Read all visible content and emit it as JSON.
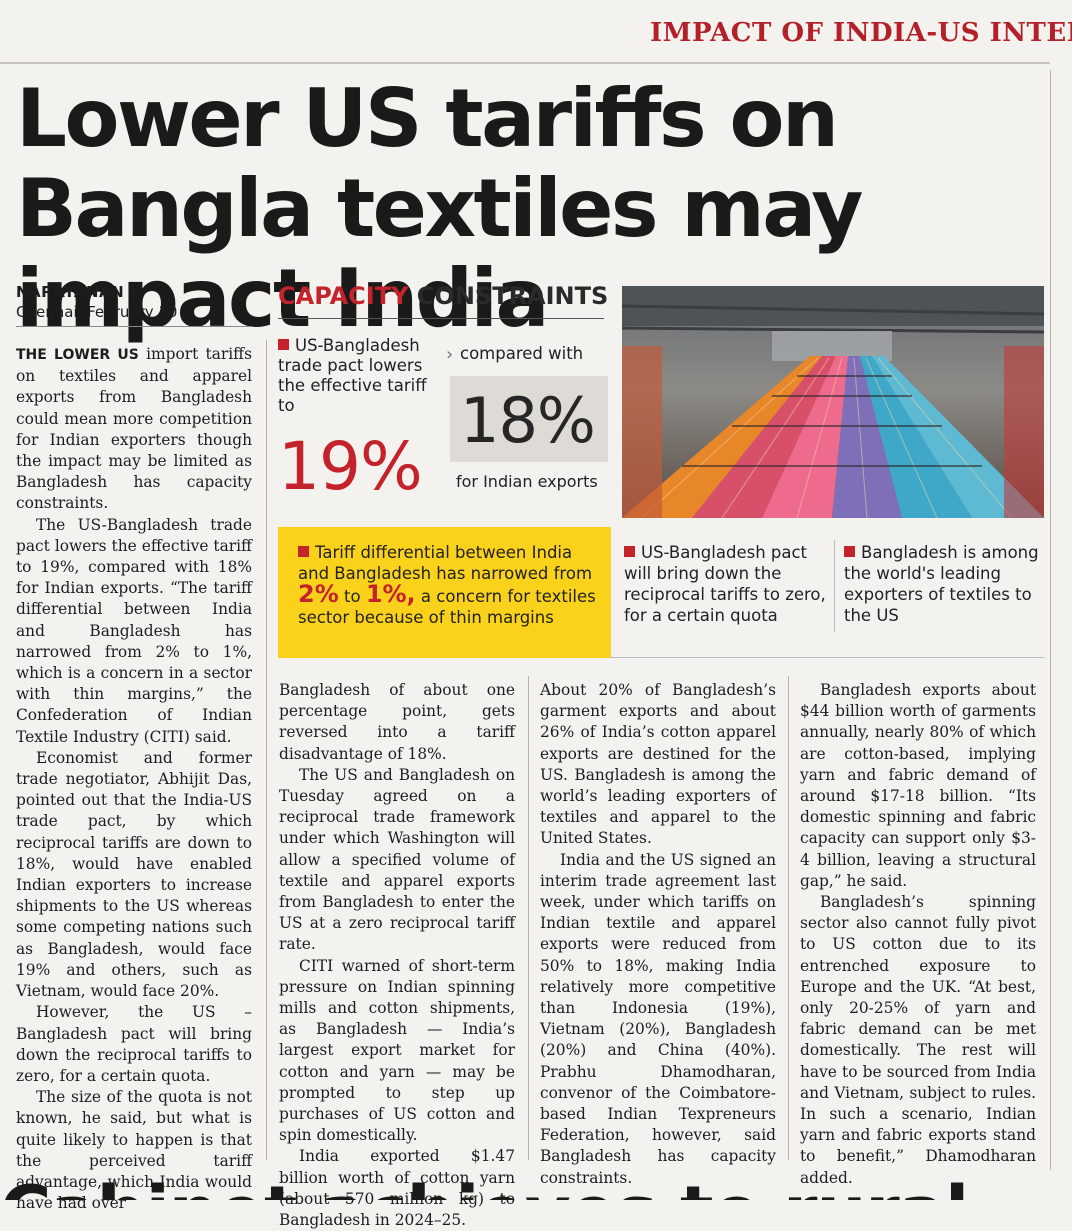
{
  "kicker": "IMPACT OF INDIA-US INTERI",
  "headline": "Lower US tariffs on Bangla textiles may impact India",
  "byline": {
    "name": "NARAYANAN V",
    "dateline": "Chennai, February 10"
  },
  "graphic": {
    "title_red": "CAPACITY",
    "title_dark": " CONSTRAINTS",
    "left_text": "US-Bangladesh trade pact lowers the effective tariff to",
    "left_value": "19%",
    "compare_text": "compared with",
    "compare_value": "18%",
    "compare_caption": "for Indian exports",
    "panel1_a": "Tariff differential between India and Bangladesh has narrowed from",
    "panel1_from": "2%",
    "panel1_to_word": " to ",
    "panel1_to": "1%,",
    "panel1_b": " a concern for textiles sector because of thin margins",
    "panel2": "US-Bangladesh pact will bring down the reciprocal tariffs to zero, for a certain quota",
    "panel3": "Bangladesh is among the world's leading exporters of textiles to the US",
    "colors": {
      "red": "#c4232b",
      "yellow": "#fbd21b"
    }
  },
  "body": {
    "col1_leadin": "THE LOWER US",
    "col1_p1": " import tariffs on textiles and apparel exports from Bangladesh could mean more competition for Indian exporters though the impact may be limited as Bangladesh has capacity constraints.",
    "col1_p2": "The US-Bangladesh trade pact lowers the effective tariff to 19%, compared with 18% for Indian exports. “The tariff differential between India and Bangladesh has narrowed from 2% to 1%, which is a concern in a sector with thin margins,” the Confederation of Indian Textile Industry (CITI) said.",
    "col1_p3": "Economist and former trade negotiator, Abhijit Das, pointed out that the India-US trade pact, by which reciprocal tariffs are down to 18%, would have enabled Indian exporters to increase shipments to the US whereas some competing nations such as Bangladesh, would face 19% and others, such as Vietnam, would face 20%.",
    "col1_p4": "However, the US –Bangladesh pact will bring down the reciprocal tariffs to zero, for a certain quota.",
    "col1_p5": "The size of the quota is not known, he said, but what is quite likely to happen is that the perceived tariff advantage, which India would have had over",
    "col2_p1": "Bangladesh of about one percentage point, gets reversed into a tariff disadvantage of 18%.",
    "col2_p2": "The US and Bangladesh on Tuesday agreed on a reciprocal trade framework under which Washington will allow a specified volume of textile and apparel exports from Bangladesh to enter the US at a zero reciprocal tariff rate.",
    "col2_p3": "CITI warned of short-term pressure on Indian spinning mills and cotton shipments, as Bangladesh — India’s largest export market for cotton and yarn — may be prompted to step up purchases of US cotton and spin domestically.",
    "col2_p4": "India exported $1.47 billion worth of cotton yarn (about 570 million kg) to Bangladesh in 2024–25.",
    "col3_p1": "About 20% of Bangladesh’s garment exports and about 26% of India’s cotton apparel exports are destined for the US. Bangladesh is among the world’s leading exporters of textiles and apparel to the United States.",
    "col3_p2": "India and the US signed an interim trade agreement last week, under which tariffs on Indian textile and apparel exports were reduced from 50% to 18%, making India relatively more competitive than Indonesia (19%), Vietnam (20%), Bangladesh (20%) and China (40%). Prabhu Dhamodharan, convenor of the Coimbatore-based Indian Texpreneurs Federation, however, said Bangladesh has capacity constraints.",
    "col4_p1": "Bangladesh exports about $44 billion worth of garments annually, nearly 80% of which are cotton-based, implying yarn and fabric demand of around $17-18 billion. “Its domestic spinning and fabric capacity can support only $3-4 billion, leaving a structural gap,” he said.",
    "col4_p2": "Bangladesh’s spinning sector also cannot fully pivot to US cotton due to its entrenched exposure to Europe and the UK. “At best, only 20-25% of yarn and fabric demand can be met domestically. The rest will have to be sourced from India and Vietnam, subject to rules. In such a scenario, Indian yarn and fabric exports stand to benefit,” Dhamodharan added."
  },
  "next_headline_fragment": "Cabinet achieves to rural"
}
